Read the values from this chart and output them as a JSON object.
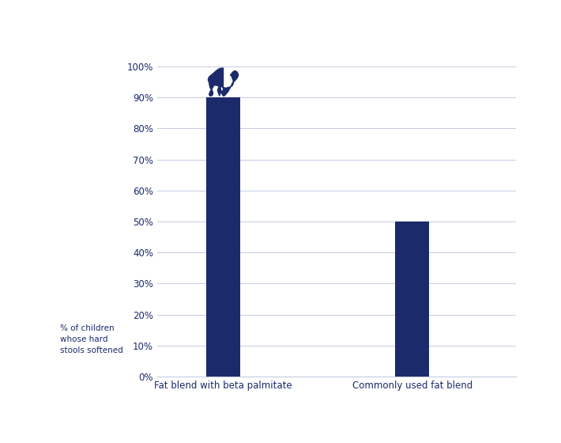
{
  "categories": [
    "Fat blend with beta palmitate",
    "Commonly used fat blend"
  ],
  "values": [
    90,
    50
  ],
  "bar_colors": [
    "#1b2a6b",
    "#1b2a6b"
  ],
  "bar_width": 0.18,
  "ylim": [
    0,
    100
  ],
  "ytick_labels": [
    "0%",
    "10%",
    "20%",
    "30%",
    "40%",
    "50%",
    "60%",
    "70%",
    "80%",
    "90%",
    "100%"
  ],
  "ytick_values": [
    0,
    10,
    20,
    30,
    40,
    50,
    60,
    70,
    80,
    90,
    100
  ],
  "ylabel": "% of children\nwhose hard\nstools softened",
  "ylabel_color": "#1b2a6b",
  "tick_color": "#1b2a6b",
  "label_color": "#1b2a6b",
  "grid_color": "#c5cce0",
  "background_color": "#ffffff",
  "bar_positions": [
    1,
    2
  ],
  "tick_fontsize": 8.5,
  "xlabel_fontsize": 8.5,
  "ylabel_fontsize": 7.5
}
